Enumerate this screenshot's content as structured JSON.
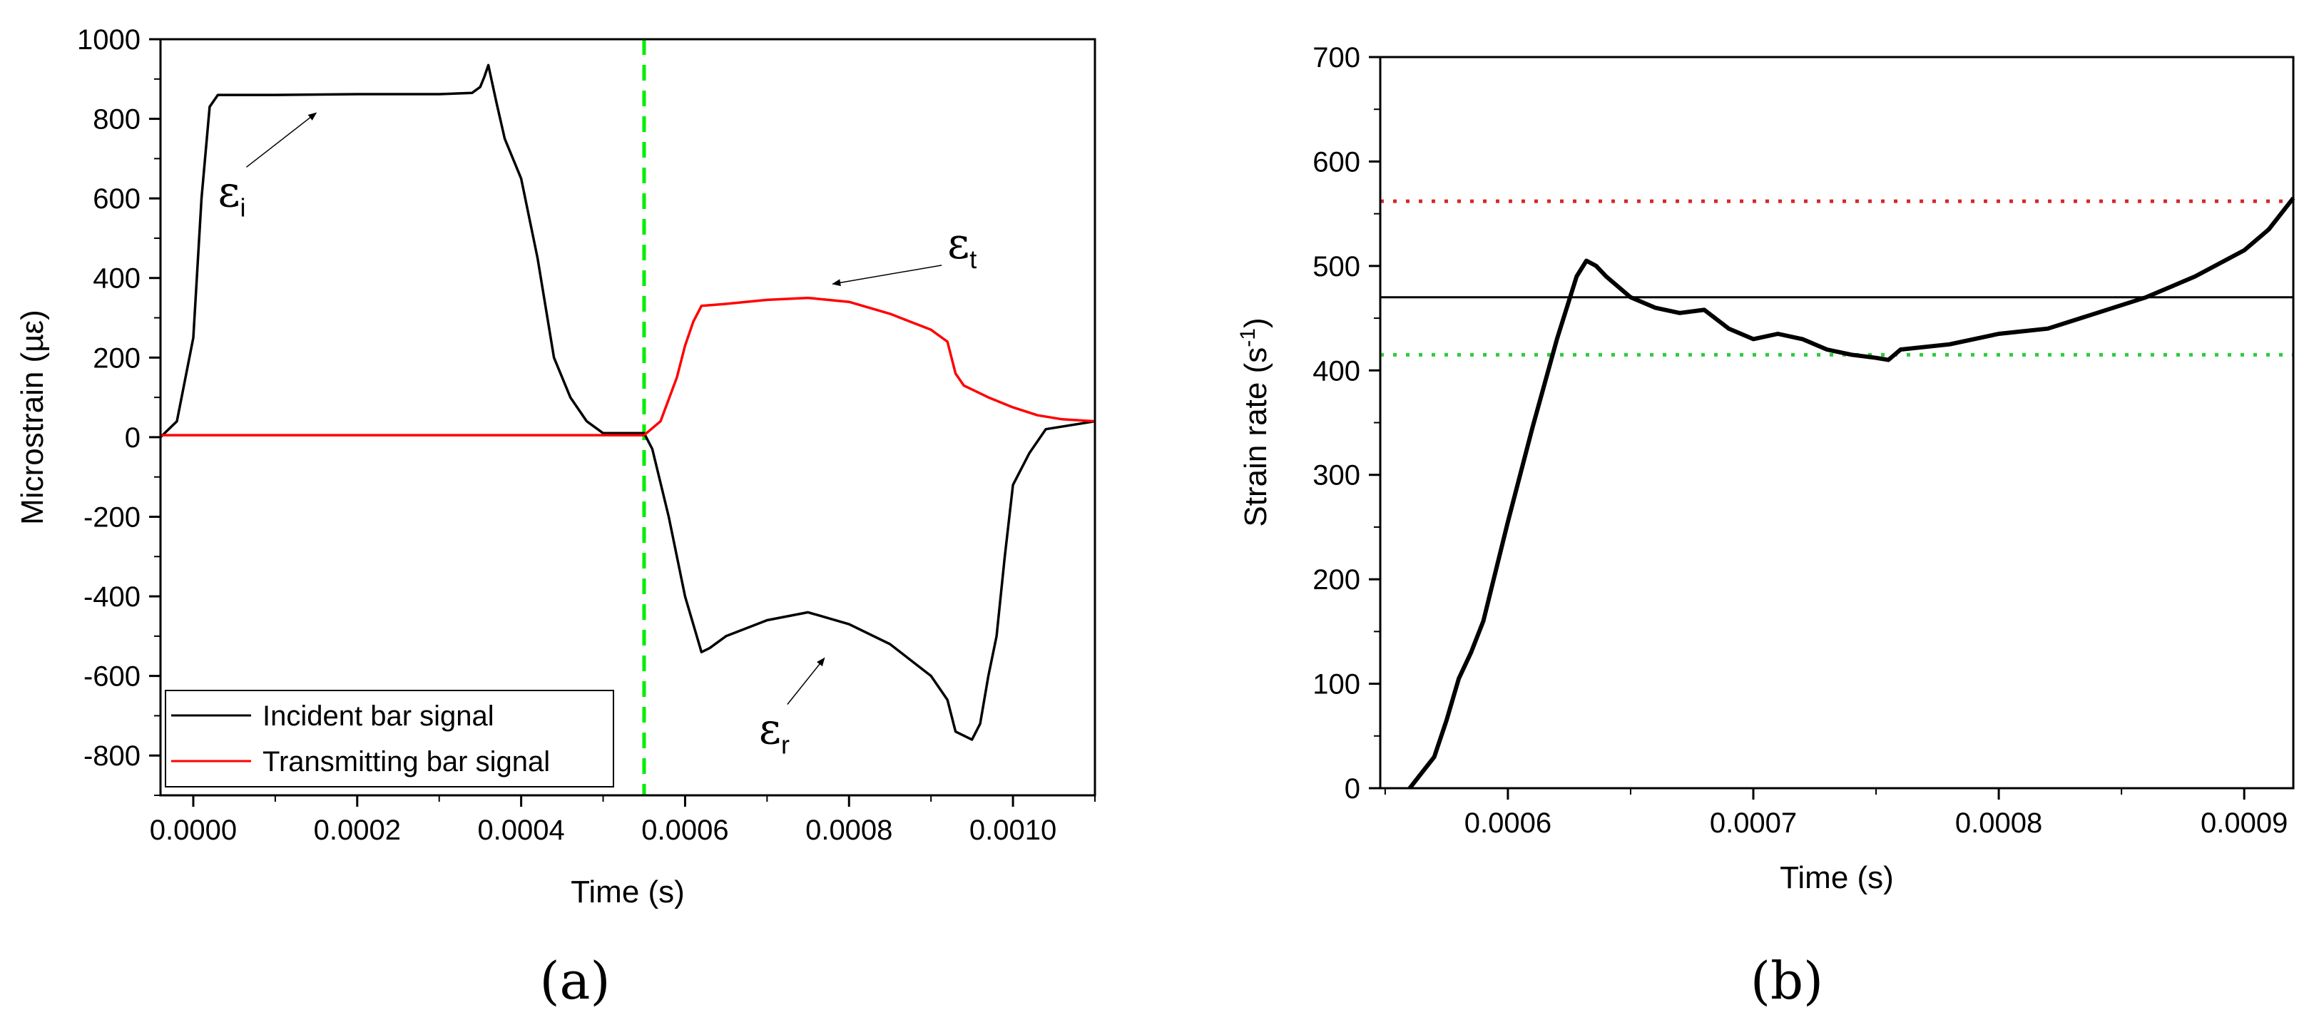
{
  "chart_data": [
    {
      "panel": "a",
      "type": "line",
      "panel_label": "(a)",
      "xlabel": "Time (s)",
      "ylabel": "Microstrain (µε)",
      "xlim": [
        -4e-05,
        0.0011
      ],
      "ylim": [
        -900,
        1000
      ],
      "x_ticks": [
        0.0,
        0.0002,
        0.0004,
        0.0006,
        0.0008,
        0.001
      ],
      "x_tick_labels": [
        "0.0000",
        "0.0002",
        "0.0004",
        "0.0006",
        "0.0008",
        "0.0010"
      ],
      "y_ticks": [
        -800,
        -600,
        -400,
        -200,
        0,
        200,
        400,
        600,
        800,
        1000
      ],
      "y_tick_labels": [
        "-800",
        "-600",
        "-400",
        "-200",
        "0",
        "200",
        "400",
        "600",
        "800",
        "1000"
      ],
      "grid": false,
      "legend_position": "bottom-left",
      "series": [
        {
          "name": "Incident bar signal",
          "color": "#000000",
          "x": [
            -4e-05,
            -2e-05,
            0.0,
            1e-05,
            2e-05,
            3e-05,
            4e-05,
            0.0001,
            0.0002,
            0.0003,
            0.00034,
            0.00035,
            0.000355,
            0.00036,
            0.00037,
            0.00038,
            0.0004,
            0.00042,
            0.00044,
            0.00046,
            0.00048,
            0.0005,
            0.00053,
            0.00055,
            0.00056,
            0.00058,
            0.0006,
            0.00062,
            0.00063,
            0.00065,
            0.0007,
            0.00075,
            0.0008,
            0.00085,
            0.0009,
            0.00092,
            0.00093,
            0.00095,
            0.00096,
            0.00097,
            0.00098,
            0.00099,
            0.001,
            0.00102,
            0.00104,
            0.0011
          ],
          "values": [
            0,
            40,
            250,
            600,
            830,
            860,
            860,
            860,
            862,
            862,
            865,
            880,
            905,
            935,
            840,
            750,
            650,
            450,
            200,
            100,
            40,
            10,
            10,
            10,
            -30,
            -200,
            -400,
            -540,
            -530,
            -500,
            -460,
            -440,
            -470,
            -520,
            -600,
            -660,
            -740,
            -760,
            -720,
            -600,
            -500,
            -300,
            -120,
            -40,
            20,
            40
          ]
        },
        {
          "name": "Transmitting bar signal",
          "color": "#ff0000",
          "x": [
            -4e-05,
            0.0,
            0.0002,
            0.0004,
            0.00055,
            0.00057,
            0.00059,
            0.0006,
            0.00061,
            0.00062,
            0.00065,
            0.0007,
            0.00075,
            0.0008,
            0.00085,
            0.0009,
            0.00092,
            0.00093,
            0.00094,
            0.00097,
            0.001,
            0.00103,
            0.00106,
            0.0011
          ],
          "values": [
            5,
            5,
            5,
            5,
            5,
            40,
            150,
            230,
            290,
            330,
            335,
            345,
            350,
            340,
            310,
            270,
            240,
            160,
            130,
            100,
            75,
            55,
            45,
            40
          ]
        }
      ],
      "reference_lines": [
        {
          "orientation": "vertical",
          "x": 0.00055,
          "color": "#00ee00",
          "style": "dashed"
        }
      ],
      "annotations": [
        {
          "symbol": "ε",
          "subscript": "i",
          "text_x": 3e-05,
          "text_y": 580,
          "arrow_to_x": 0.00015,
          "arrow_to_y": 815
        },
        {
          "symbol": "ε",
          "subscript": "t",
          "text_x": 0.00092,
          "text_y": 450,
          "arrow_to_x": 0.00078,
          "arrow_to_y": 385
        },
        {
          "symbol": "ε",
          "subscript": "r",
          "text_x": 0.00069,
          "text_y": -770,
          "arrow_to_x": 0.00077,
          "arrow_to_y": -555
        }
      ]
    },
    {
      "panel": "b",
      "type": "line",
      "panel_label": "(b)",
      "xlabel": "Time (s)",
      "ylabel_main": "Strain rate (s",
      "ylabel_sup": "-1",
      "ylabel_close": ")",
      "xlim": [
        0.000548,
        0.00092
      ],
      "ylim": [
        0,
        700
      ],
      "x_ticks": [
        0.0006,
        0.0007,
        0.0008,
        0.0009
      ],
      "x_tick_labels": [
        "0.0006",
        "0.0007",
        "0.0008",
        "0.0009"
      ],
      "y_ticks": [
        0,
        100,
        200,
        300,
        400,
        500,
        600,
        700
      ],
      "y_tick_labels": [
        "0",
        "100",
        "200",
        "300",
        "400",
        "500",
        "600",
        "700"
      ],
      "grid": false,
      "series": [
        {
          "name": "Strain rate",
          "color": "#000000",
          "x": [
            0.00056,
            0.000565,
            0.00057,
            0.000575,
            0.00058,
            0.000585,
            0.00059,
            0.0006,
            0.00061,
            0.00062,
            0.000628,
            0.000632,
            0.000636,
            0.00064,
            0.00065,
            0.00066,
            0.00067,
            0.00068,
            0.00069,
            0.0007,
            0.00071,
            0.00072,
            0.00073,
            0.00074,
            0.00075,
            0.000755,
            0.00076,
            0.00078,
            0.0008,
            0.00082,
            0.00084,
            0.00086,
            0.00088,
            0.0009,
            0.00091,
            0.00092
          ],
          "values": [
            0,
            15,
            30,
            65,
            105,
            130,
            160,
            255,
            345,
            430,
            490,
            505,
            500,
            490,
            470,
            460,
            455,
            458,
            440,
            430,
            435,
            430,
            420,
            415,
            412,
            410,
            420,
            425,
            435,
            440,
            455,
            470,
            490,
            515,
            535,
            565
          ]
        }
      ],
      "reference_lines": [
        {
          "orientation": "horizontal",
          "y": 562,
          "color": "#d62728",
          "style": "dotted"
        },
        {
          "orientation": "horizontal",
          "y": 470,
          "color": "#000000",
          "style": "solid"
        },
        {
          "orientation": "horizontal",
          "y": 415,
          "color": "#2ecc40",
          "style": "dotted"
        }
      ]
    }
  ]
}
